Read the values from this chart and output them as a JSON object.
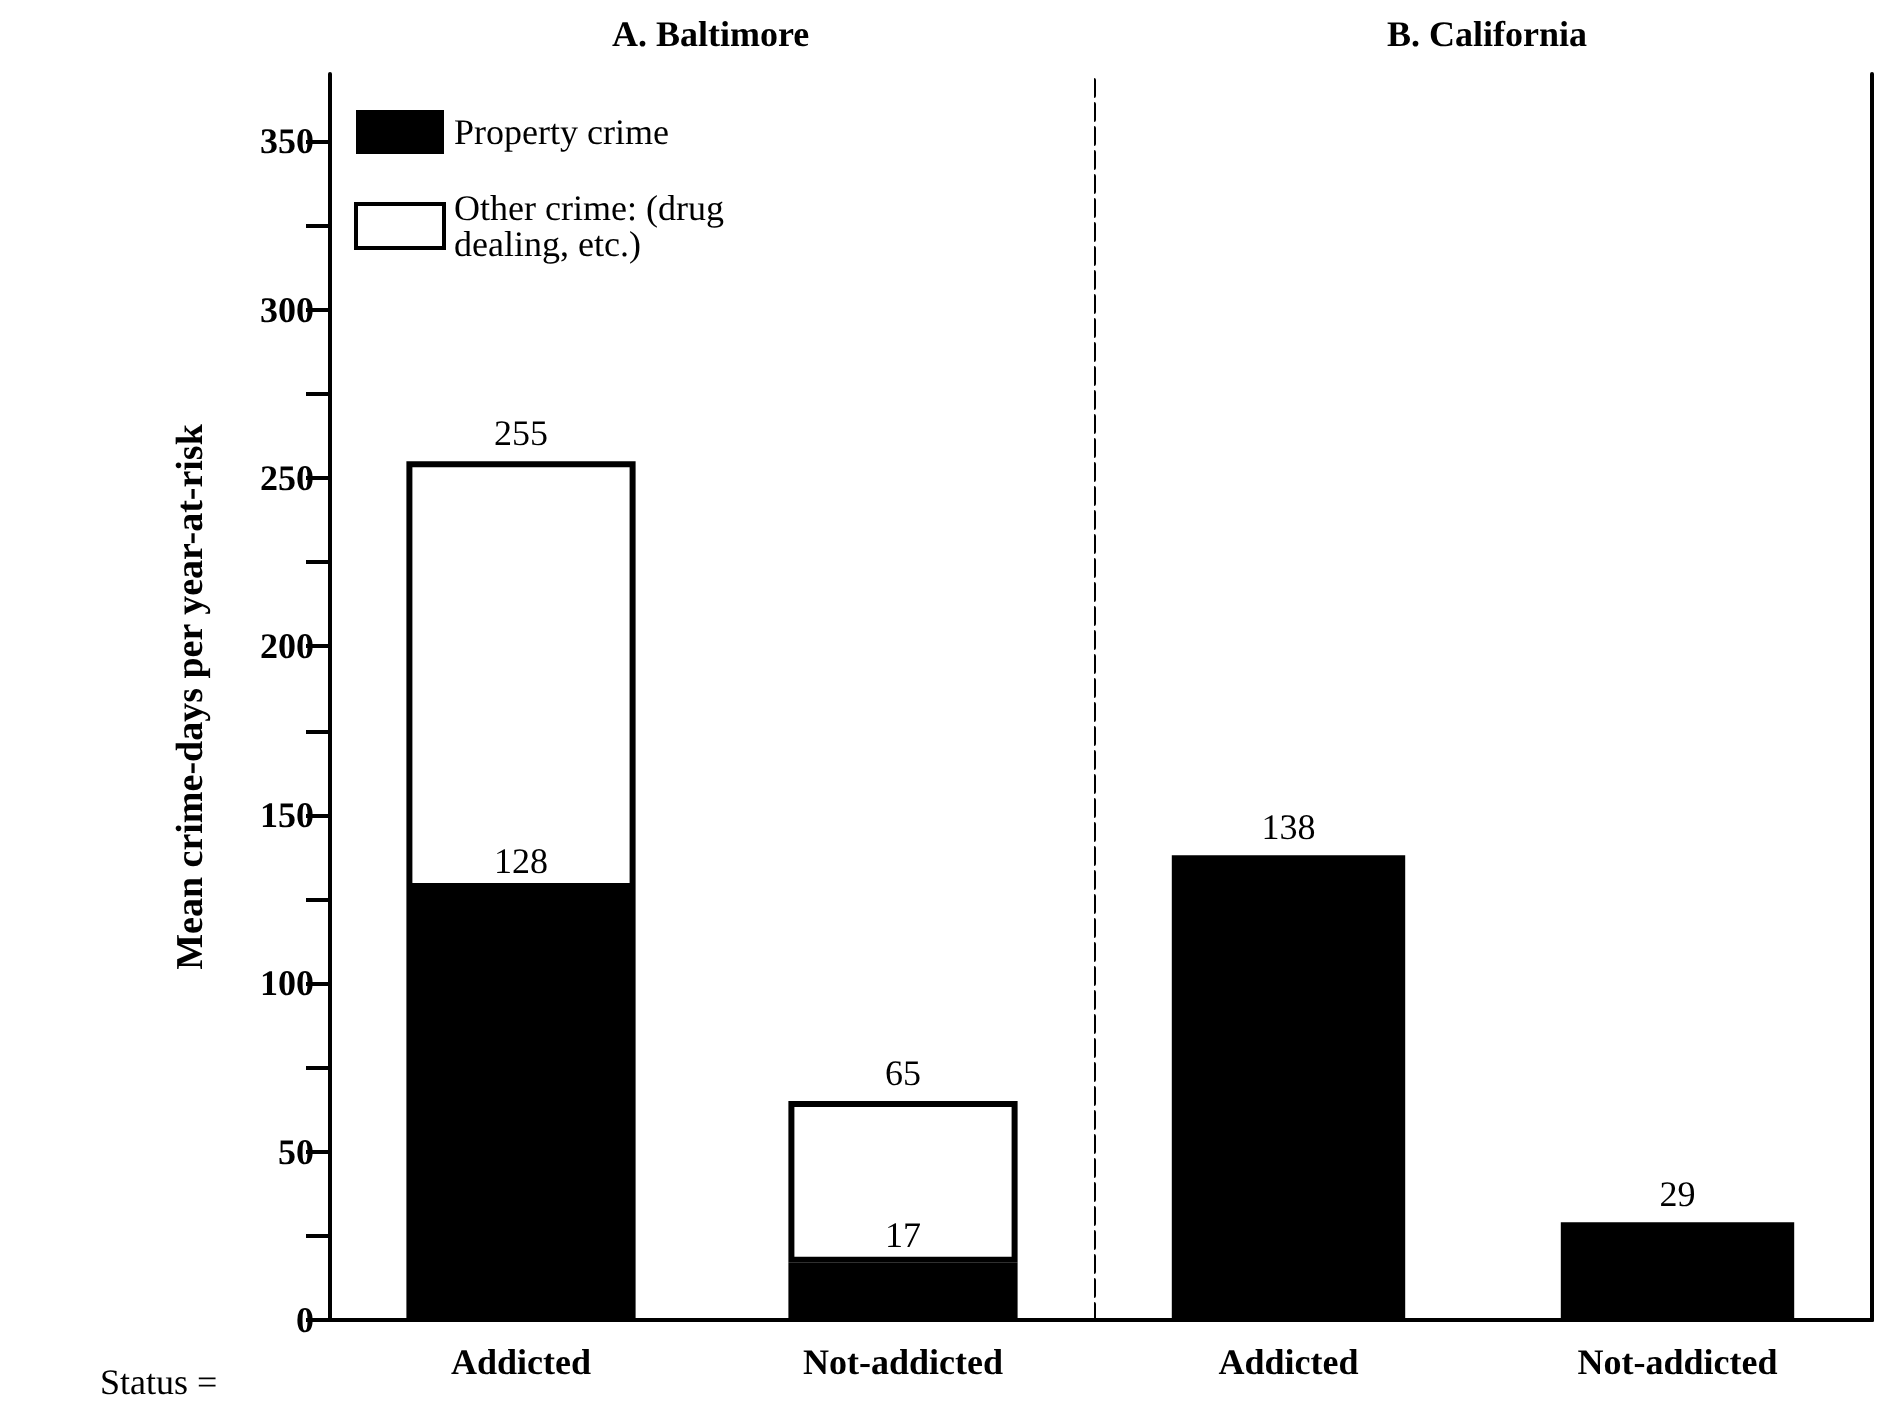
{
  "chart_data": [
    {
      "type": "bar",
      "title": "A. Baltimore",
      "categories": [
        "Addicted",
        "Not-addicted"
      ],
      "stacked": true,
      "ylabel": "Mean crime-days per year-at-risk",
      "ylim": [
        0,
        370
      ],
      "yticks": [
        0,
        {
          "value": 25,
          "label": null
        },
        50,
        {
          "value": 75,
          "label": null
        },
        100,
        {
          "value": 125,
          "label": null
        },
        150,
        {
          "value": 175,
          "label": null
        },
        200,
        {
          "value": 225,
          "label": null
        },
        250,
        {
          "value": 275,
          "label": null
        },
        300,
        {
          "value": 325,
          "label": null
        },
        350
      ],
      "series": [
        {
          "name": "Property crime",
          "color": "#000000",
          "values": [
            128,
            17
          ],
          "value_labels": [
            "128",
            "17"
          ]
        },
        {
          "name": "Other crime: (drug dealing, etc.)",
          "color": "#ffffff",
          "values": [
            127,
            48
          ]
        }
      ],
      "totals": [
        "255",
        "65"
      ],
      "legend": "top left",
      "annotations": [
        "Status ="
      ]
    },
    {
      "type": "bar",
      "title": "B. California",
      "categories": [
        "Addicted",
        "Not-addicted"
      ],
      "ylim": [
        0,
        370
      ],
      "tick_labels": "x",
      "series": [
        {
          "color": "#000000",
          "values": [
            138,
            29
          ],
          "value_labels": [
            "138",
            "29"
          ]
        }
      ]
    }
  ]
}
